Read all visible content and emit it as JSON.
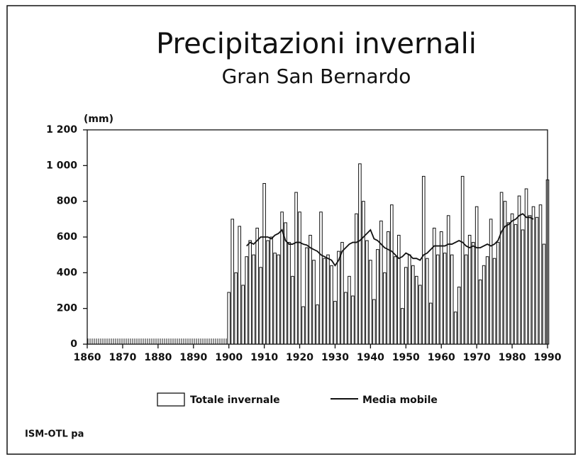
{
  "chart_data": {
    "type": "bar",
    "title": "Precipitazioni invernali",
    "subtitle": "Gran San Bernardo",
    "y_label": "(mm)",
    "footer": "ISM-OTL pa",
    "x": [
      1900,
      1901,
      1902,
      1903,
      1904,
      1905,
      1906,
      1907,
      1908,
      1909,
      1910,
      1911,
      1912,
      1913,
      1914,
      1915,
      1916,
      1917,
      1918,
      1919,
      1920,
      1921,
      1922,
      1923,
      1924,
      1925,
      1926,
      1927,
      1928,
      1929,
      1930,
      1931,
      1932,
      1933,
      1934,
      1935,
      1936,
      1937,
      1938,
      1939,
      1940,
      1941,
      1942,
      1943,
      1944,
      1945,
      1946,
      1947,
      1948,
      1949,
      1950,
      1951,
      1952,
      1953,
      1954,
      1955,
      1956,
      1957,
      1958,
      1959,
      1960,
      1961,
      1962,
      1963,
      1964,
      1965,
      1966,
      1967,
      1968,
      1969,
      1970,
      1971,
      1972,
      1973,
      1974,
      1975,
      1976,
      1977,
      1978,
      1979,
      1980,
      1981,
      1982,
      1983,
      1984,
      1985,
      1986,
      1987,
      1988,
      1989,
      1990
    ],
    "series": [
      {
        "name": "Totale invernale",
        "color": "#ffffff",
        "values": [
          290,
          700,
          400,
          660,
          330,
          490,
          580,
          500,
          650,
          430,
          900,
          580,
          600,
          510,
          500,
          740,
          680,
          570,
          380,
          850,
          740,
          210,
          540,
          610,
          470,
          220,
          740,
          480,
          500,
          440,
          240,
          520,
          570,
          290,
          380,
          270,
          730,
          1010,
          800,
          580,
          470,
          250,
          530,
          690,
          400,
          630,
          780,
          490,
          610,
          200,
          430,
          500,
          440,
          380,
          330,
          940,
          480,
          230,
          650,
          500,
          630,
          510,
          720,
          500,
          180,
          320,
          940,
          500,
          610,
          570,
          770,
          360,
          440,
          490,
          700,
          480,
          570,
          850,
          800,
          680,
          730,
          670,
          830,
          640,
          870,
          720,
          770,
          710,
          780,
          560,
          920
        ]
      },
      {
        "name": "Media mobile",
        "color": "#111111",
        "values": [
          null,
          null,
          null,
          null,
          null,
          550,
          570,
          560,
          580,
          600,
          600,
          600,
          590,
          610,
          620,
          640,
          580,
          560,
          560,
          570,
          570,
          560,
          555,
          540,
          530,
          520,
          500,
          490,
          480,
          470,
          440,
          470,
          520,
          540,
          560,
          570,
          570,
          580,
          600,
          620,
          640,
          590,
          580,
          560,
          540,
          530,
          520,
          500,
          480,
          490,
          510,
          500,
          480,
          480,
          470,
          500,
          510,
          530,
          550,
          550,
          550,
          550,
          560,
          560,
          570,
          580,
          570,
          550,
          540,
          550,
          540,
          540,
          550,
          560,
          550,
          560,
          580,
          630,
          660,
          670,
          690,
          700,
          720,
          730,
          710,
          710,
          700,
          null,
          null,
          null,
          null
        ]
      }
    ],
    "xlim": [
      1860,
      1990
    ],
    "xticks": [
      1860,
      1870,
      1880,
      1890,
      1900,
      1910,
      1920,
      1930,
      1940,
      1950,
      1960,
      1970,
      1980,
      1990
    ],
    "ylim": [
      0,
      1200
    ],
    "yticks": [
      0,
      200,
      400,
      600,
      800,
      {
        "value": 1000,
        "label": "1 000"
      },
      {
        "value": 1200,
        "label": "1 200"
      }
    ]
  }
}
